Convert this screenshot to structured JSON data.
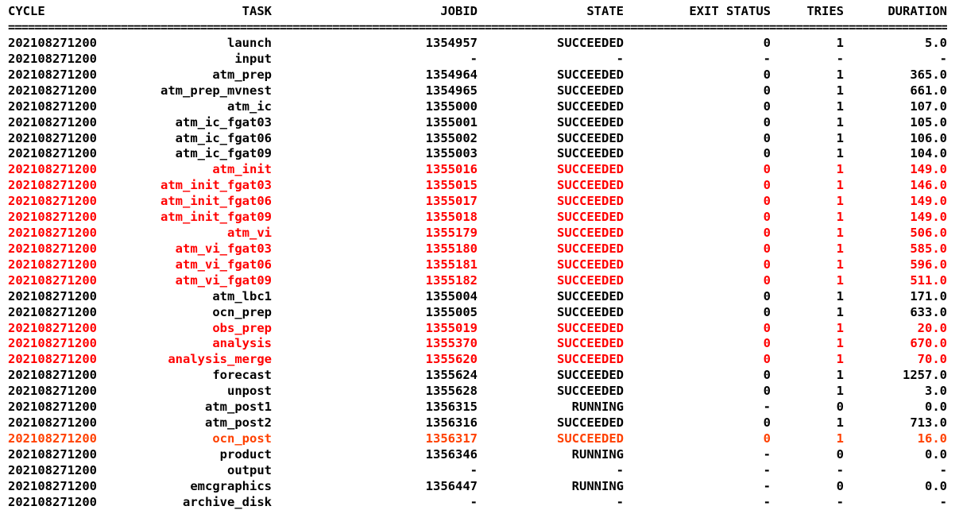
{
  "colors": {
    "default": "#000000",
    "highlight": "#ff0000",
    "highlight_orange": "#ff4000",
    "background": "#ffffff"
  },
  "header": {
    "cycle": "CYCLE",
    "task": "TASK",
    "jobid": "JOBID",
    "state": "STATE",
    "exit_status": "EXIT STATUS",
    "tries": "TRIES",
    "duration": "DURATION"
  },
  "separator": "==========================================================================================================================================================================",
  "rows": [
    {
      "cycle": "202108271200",
      "task": "launch",
      "jobid": "1354957",
      "state": "SUCCEEDED",
      "exit": "0",
      "tries": "1",
      "duration": "5.0",
      "color": "default"
    },
    {
      "cycle": "202108271200",
      "task": "input",
      "jobid": "-",
      "state": "-",
      "exit": "-",
      "tries": "-",
      "duration": "-",
      "color": "default"
    },
    {
      "cycle": "202108271200",
      "task": "atm_prep",
      "jobid": "1354964",
      "state": "SUCCEEDED",
      "exit": "0",
      "tries": "1",
      "duration": "365.0",
      "color": "default"
    },
    {
      "cycle": "202108271200",
      "task": "atm_prep_mvnest",
      "jobid": "1354965",
      "state": "SUCCEEDED",
      "exit": "0",
      "tries": "1",
      "duration": "661.0",
      "color": "default"
    },
    {
      "cycle": "202108271200",
      "task": "atm_ic",
      "jobid": "1355000",
      "state": "SUCCEEDED",
      "exit": "0",
      "tries": "1",
      "duration": "107.0",
      "color": "default"
    },
    {
      "cycle": "202108271200",
      "task": "atm_ic_fgat03",
      "jobid": "1355001",
      "state": "SUCCEEDED",
      "exit": "0",
      "tries": "1",
      "duration": "105.0",
      "color": "default"
    },
    {
      "cycle": "202108271200",
      "task": "atm_ic_fgat06",
      "jobid": "1355002",
      "state": "SUCCEEDED",
      "exit": "0",
      "tries": "1",
      "duration": "106.0",
      "color": "default"
    },
    {
      "cycle": "202108271200",
      "task": "atm_ic_fgat09",
      "jobid": "1355003",
      "state": "SUCCEEDED",
      "exit": "0",
      "tries": "1",
      "duration": "104.0",
      "color": "default"
    },
    {
      "cycle": "202108271200",
      "task": "atm_init",
      "jobid": "1355016",
      "state": "SUCCEEDED",
      "exit": "0",
      "tries": "1",
      "duration": "149.0",
      "color": "highlight"
    },
    {
      "cycle": "202108271200",
      "task": "atm_init_fgat03",
      "jobid": "1355015",
      "state": "SUCCEEDED",
      "exit": "0",
      "tries": "1",
      "duration": "146.0",
      "color": "highlight"
    },
    {
      "cycle": "202108271200",
      "task": "atm_init_fgat06",
      "jobid": "1355017",
      "state": "SUCCEEDED",
      "exit": "0",
      "tries": "1",
      "duration": "149.0",
      "color": "highlight"
    },
    {
      "cycle": "202108271200",
      "task": "atm_init_fgat09",
      "jobid": "1355018",
      "state": "SUCCEEDED",
      "exit": "0",
      "tries": "1",
      "duration": "149.0",
      "color": "highlight"
    },
    {
      "cycle": "202108271200",
      "task": "atm_vi",
      "jobid": "1355179",
      "state": "SUCCEEDED",
      "exit": "0",
      "tries": "1",
      "duration": "506.0",
      "color": "highlight"
    },
    {
      "cycle": "202108271200",
      "task": "atm_vi_fgat03",
      "jobid": "1355180",
      "state": "SUCCEEDED",
      "exit": "0",
      "tries": "1",
      "duration": "585.0",
      "color": "highlight"
    },
    {
      "cycle": "202108271200",
      "task": "atm_vi_fgat06",
      "jobid": "1355181",
      "state": "SUCCEEDED",
      "exit": "0",
      "tries": "1",
      "duration": "596.0",
      "color": "highlight"
    },
    {
      "cycle": "202108271200",
      "task": "atm_vi_fgat09",
      "jobid": "1355182",
      "state": "SUCCEEDED",
      "exit": "0",
      "tries": "1",
      "duration": "511.0",
      "color": "highlight"
    },
    {
      "cycle": "202108271200",
      "task": "atm_lbc1",
      "jobid": "1355004",
      "state": "SUCCEEDED",
      "exit": "0",
      "tries": "1",
      "duration": "171.0",
      "color": "default"
    },
    {
      "cycle": "202108271200",
      "task": "ocn_prep",
      "jobid": "1355005",
      "state": "SUCCEEDED",
      "exit": "0",
      "tries": "1",
      "duration": "633.0",
      "color": "default"
    },
    {
      "cycle": "202108271200",
      "task": "obs_prep",
      "jobid": "1355019",
      "state": "SUCCEEDED",
      "exit": "0",
      "tries": "1",
      "duration": "20.0",
      "color": "highlight"
    },
    {
      "cycle": "202108271200",
      "task": "analysis",
      "jobid": "1355370",
      "state": "SUCCEEDED",
      "exit": "0",
      "tries": "1",
      "duration": "670.0",
      "color": "highlight"
    },
    {
      "cycle": "202108271200",
      "task": "analysis_merge",
      "jobid": "1355620",
      "state": "SUCCEEDED",
      "exit": "0",
      "tries": "1",
      "duration": "70.0",
      "color": "highlight"
    },
    {
      "cycle": "202108271200",
      "task": "forecast",
      "jobid": "1355624",
      "state": "SUCCEEDED",
      "exit": "0",
      "tries": "1",
      "duration": "1257.0",
      "color": "default"
    },
    {
      "cycle": "202108271200",
      "task": "unpost",
      "jobid": "1355628",
      "state": "SUCCEEDED",
      "exit": "0",
      "tries": "1",
      "duration": "3.0",
      "color": "default"
    },
    {
      "cycle": "202108271200",
      "task": "atm_post1",
      "jobid": "1356315",
      "state": "RUNNING",
      "exit": "-",
      "tries": "0",
      "duration": "0.0",
      "color": "default"
    },
    {
      "cycle": "202108271200",
      "task": "atm_post2",
      "jobid": "1356316",
      "state": "SUCCEEDED",
      "exit": "0",
      "tries": "1",
      "duration": "713.0",
      "color": "default"
    },
    {
      "cycle": "202108271200",
      "task": "ocn_post",
      "jobid": "1356317",
      "state": "SUCCEEDED",
      "exit": "0",
      "tries": "1",
      "duration": "16.0",
      "color": "highlight_orange"
    },
    {
      "cycle": "202108271200",
      "task": "product",
      "jobid": "1356346",
      "state": "RUNNING",
      "exit": "-",
      "tries": "0",
      "duration": "0.0",
      "color": "default"
    },
    {
      "cycle": "202108271200",
      "task": "output",
      "jobid": "-",
      "state": "-",
      "exit": "-",
      "tries": "-",
      "duration": "-",
      "color": "default"
    },
    {
      "cycle": "202108271200",
      "task": "emcgraphics",
      "jobid": "1356447",
      "state": "RUNNING",
      "exit": "-",
      "tries": "0",
      "duration": "0.0",
      "color": "default"
    },
    {
      "cycle": "202108271200",
      "task": "archive_disk",
      "jobid": "-",
      "state": "-",
      "exit": "-",
      "tries": "-",
      "duration": "-",
      "color": "default"
    }
  ]
}
